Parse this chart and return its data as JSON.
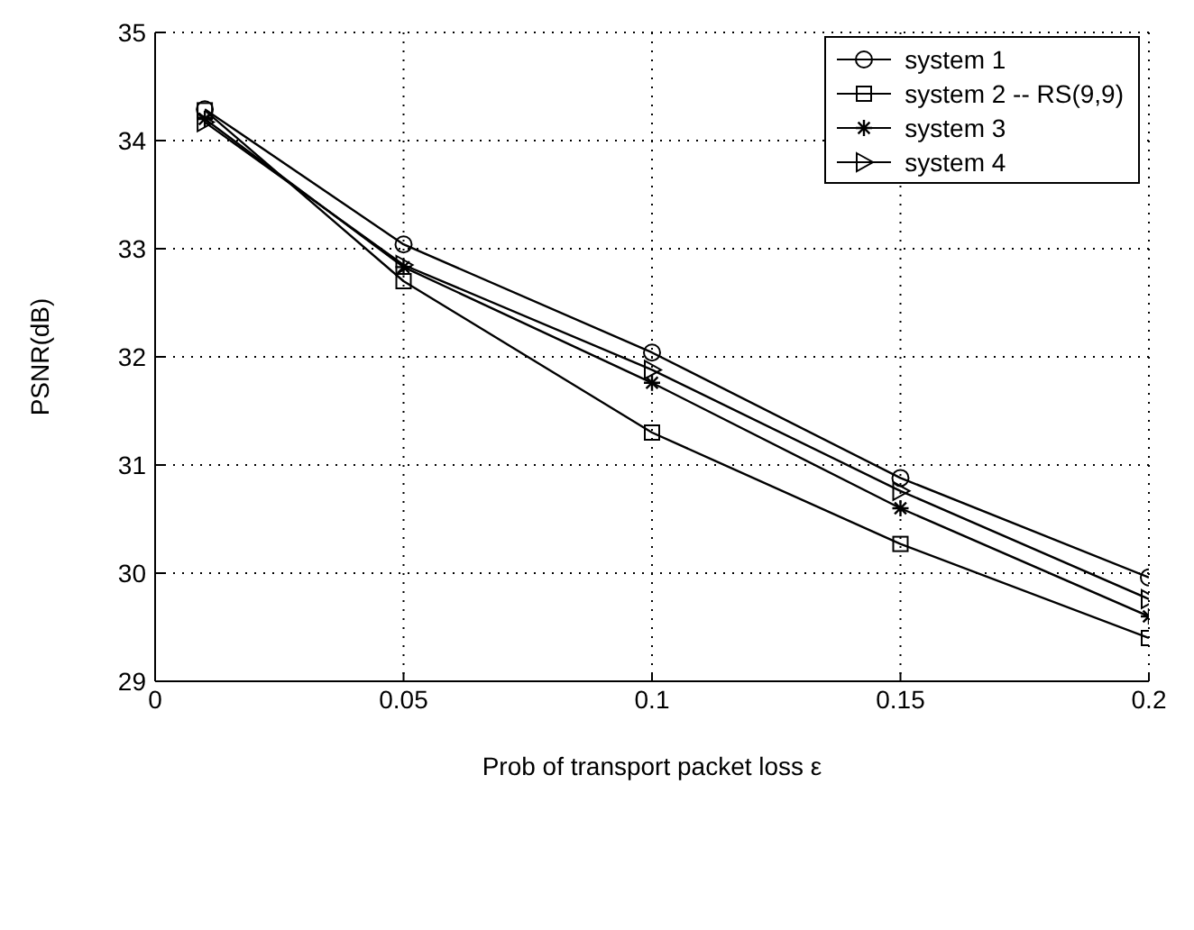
{
  "chart_data": {
    "type": "line",
    "xlabel": "Prob of transport packet loss ε",
    "ylabel": "PSNR(dB)",
    "x": [
      0.01,
      0.05,
      0.1,
      0.15,
      0.2
    ],
    "series": [
      {
        "name": "system 1",
        "color": "#000000",
        "marker": "circle",
        "values": [
          34.29,
          33.04,
          32.04,
          30.88,
          29.96
        ]
      },
      {
        "name": "system 2 -- RS(9,9)",
        "color": "#000000",
        "marker": "square",
        "values": [
          34.28,
          32.7,
          31.3,
          30.27,
          29.4
        ]
      },
      {
        "name": "system 3",
        "color": "#000000",
        "marker": "cross",
        "values": [
          34.2,
          32.83,
          31.76,
          30.6,
          29.6
        ]
      },
      {
        "name": "system 4",
        "color": "#000000",
        "marker": "triangle",
        "values": [
          34.17,
          32.85,
          31.88,
          30.76,
          29.76
        ]
      }
    ],
    "xlim": [
      0,
      0.2
    ],
    "xticks": [
      0,
      0.05,
      0.1,
      0.15,
      0.2
    ],
    "ylim": [
      29,
      35
    ],
    "yticks": [
      29,
      30,
      31,
      32,
      33,
      34,
      35
    ],
    "grid": true,
    "legend": "top right",
    "line_style": "solid"
  }
}
